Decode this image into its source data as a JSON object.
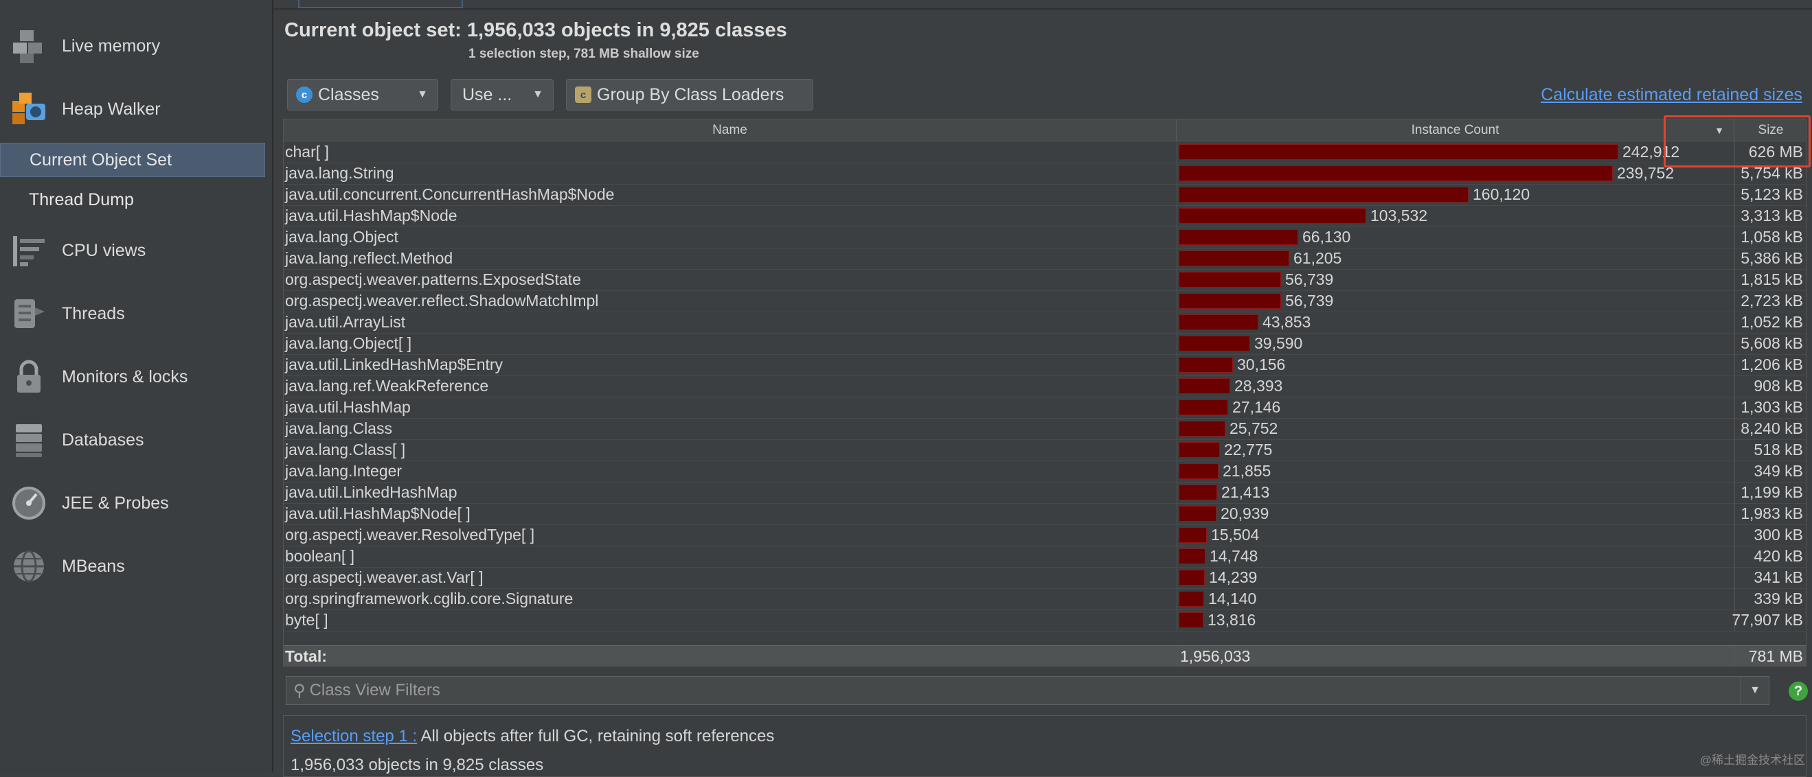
{
  "sidebar": {
    "items": [
      {
        "label": "Live memory",
        "icon": "live-memory-icon"
      },
      {
        "label": "Heap Walker",
        "icon": "heap-walker-icon"
      },
      {
        "label": "CPU views",
        "icon": "cpu-views-icon"
      },
      {
        "label": "Threads",
        "icon": "threads-icon"
      },
      {
        "label": "Monitors & locks",
        "icon": "lock-icon"
      },
      {
        "label": "Databases",
        "icon": "database-icon"
      },
      {
        "label": "JEE & Probes",
        "icon": "gauge-icon"
      },
      {
        "label": "MBeans",
        "icon": "globe-icon"
      }
    ],
    "subitems": [
      {
        "label": "Current Object Set",
        "selected": true
      },
      {
        "label": "Thread Dump",
        "selected": false
      }
    ]
  },
  "header": {
    "title": "Current object set:  1,956,033 objects in 9,825 classes",
    "subtitle": "1 selection step, 781 MB shallow size"
  },
  "toolbar": {
    "classes_label": "Classes",
    "use_label": "Use ...",
    "group_label": "Group By Class Loaders",
    "retained_link": "Calculate estimated retained sizes"
  },
  "table": {
    "headers": {
      "name": "Name",
      "count": "Instance Count",
      "size": "Size"
    },
    "max_count": 242912,
    "rows": [
      {
        "name": "char[ ]",
        "count": 242912,
        "count_label": "242,912",
        "size": "626 MB"
      },
      {
        "name": "java.lang.String",
        "count": 239752,
        "count_label": "239,752",
        "size": "5,754 kB"
      },
      {
        "name": "java.util.concurrent.ConcurrentHashMap$Node",
        "count": 160120,
        "count_label": "160,120",
        "size": "5,123 kB"
      },
      {
        "name": "java.util.HashMap$Node",
        "count": 103532,
        "count_label": "103,532",
        "size": "3,313 kB"
      },
      {
        "name": "java.lang.Object",
        "count": 66130,
        "count_label": "66,130",
        "size": "1,058 kB"
      },
      {
        "name": "java.lang.reflect.Method",
        "count": 61205,
        "count_label": "61,205",
        "size": "5,386 kB"
      },
      {
        "name": "org.aspectj.weaver.patterns.ExposedState",
        "count": 56739,
        "count_label": "56,739",
        "size": "1,815 kB"
      },
      {
        "name": "org.aspectj.weaver.reflect.ShadowMatchImpl",
        "count": 56739,
        "count_label": "56,739",
        "size": "2,723 kB"
      },
      {
        "name": "java.util.ArrayList",
        "count": 43853,
        "count_label": "43,853",
        "size": "1,052 kB"
      },
      {
        "name": "java.lang.Object[ ]",
        "count": 39590,
        "count_label": "39,590",
        "size": "5,608 kB"
      },
      {
        "name": "java.util.LinkedHashMap$Entry",
        "count": 30156,
        "count_label": "30,156",
        "size": "1,206 kB"
      },
      {
        "name": "java.lang.ref.WeakReference",
        "count": 28393,
        "count_label": "28,393",
        "size": "908 kB"
      },
      {
        "name": "java.util.HashMap",
        "count": 27146,
        "count_label": "27,146",
        "size": "1,303 kB"
      },
      {
        "name": "java.lang.Class",
        "count": 25752,
        "count_label": "25,752",
        "size": "8,240 kB"
      },
      {
        "name": "java.lang.Class[ ]",
        "count": 22775,
        "count_label": "22,775",
        "size": "518 kB"
      },
      {
        "name": "java.lang.Integer",
        "count": 21855,
        "count_label": "21,855",
        "size": "349 kB"
      },
      {
        "name": "java.util.LinkedHashMap",
        "count": 21413,
        "count_label": "21,413",
        "size": "1,199 kB"
      },
      {
        "name": "java.util.HashMap$Node[ ]",
        "count": 20939,
        "count_label": "20,939",
        "size": "1,983 kB"
      },
      {
        "name": "org.aspectj.weaver.ResolvedType[ ]",
        "count": 15504,
        "count_label": "15,504",
        "size": "300 kB"
      },
      {
        "name": "boolean[ ]",
        "count": 14748,
        "count_label": "14,748",
        "size": "420 kB"
      },
      {
        "name": "org.aspectj.weaver.ast.Var[ ]",
        "count": 14239,
        "count_label": "14,239",
        "size": "341 kB"
      },
      {
        "name": "org.springframework.cglib.core.Signature",
        "count": 14140,
        "count_label": "14,140",
        "size": "339 kB"
      },
      {
        "name": "byte[ ]",
        "count": 13816,
        "count_label": "13,816",
        "size": "77,907 kB"
      }
    ],
    "total": {
      "label": "Total:",
      "count": "1,956,033",
      "size": "781 MB"
    }
  },
  "filter": {
    "placeholder": "Class View Filters"
  },
  "steps": {
    "link": "Selection step 1 :",
    "text": " All objects after full GC, retaining soft references",
    "line2": "1,956,033 objects in 9,825 classes"
  },
  "watermark": "@稀土掘金技术社区"
}
